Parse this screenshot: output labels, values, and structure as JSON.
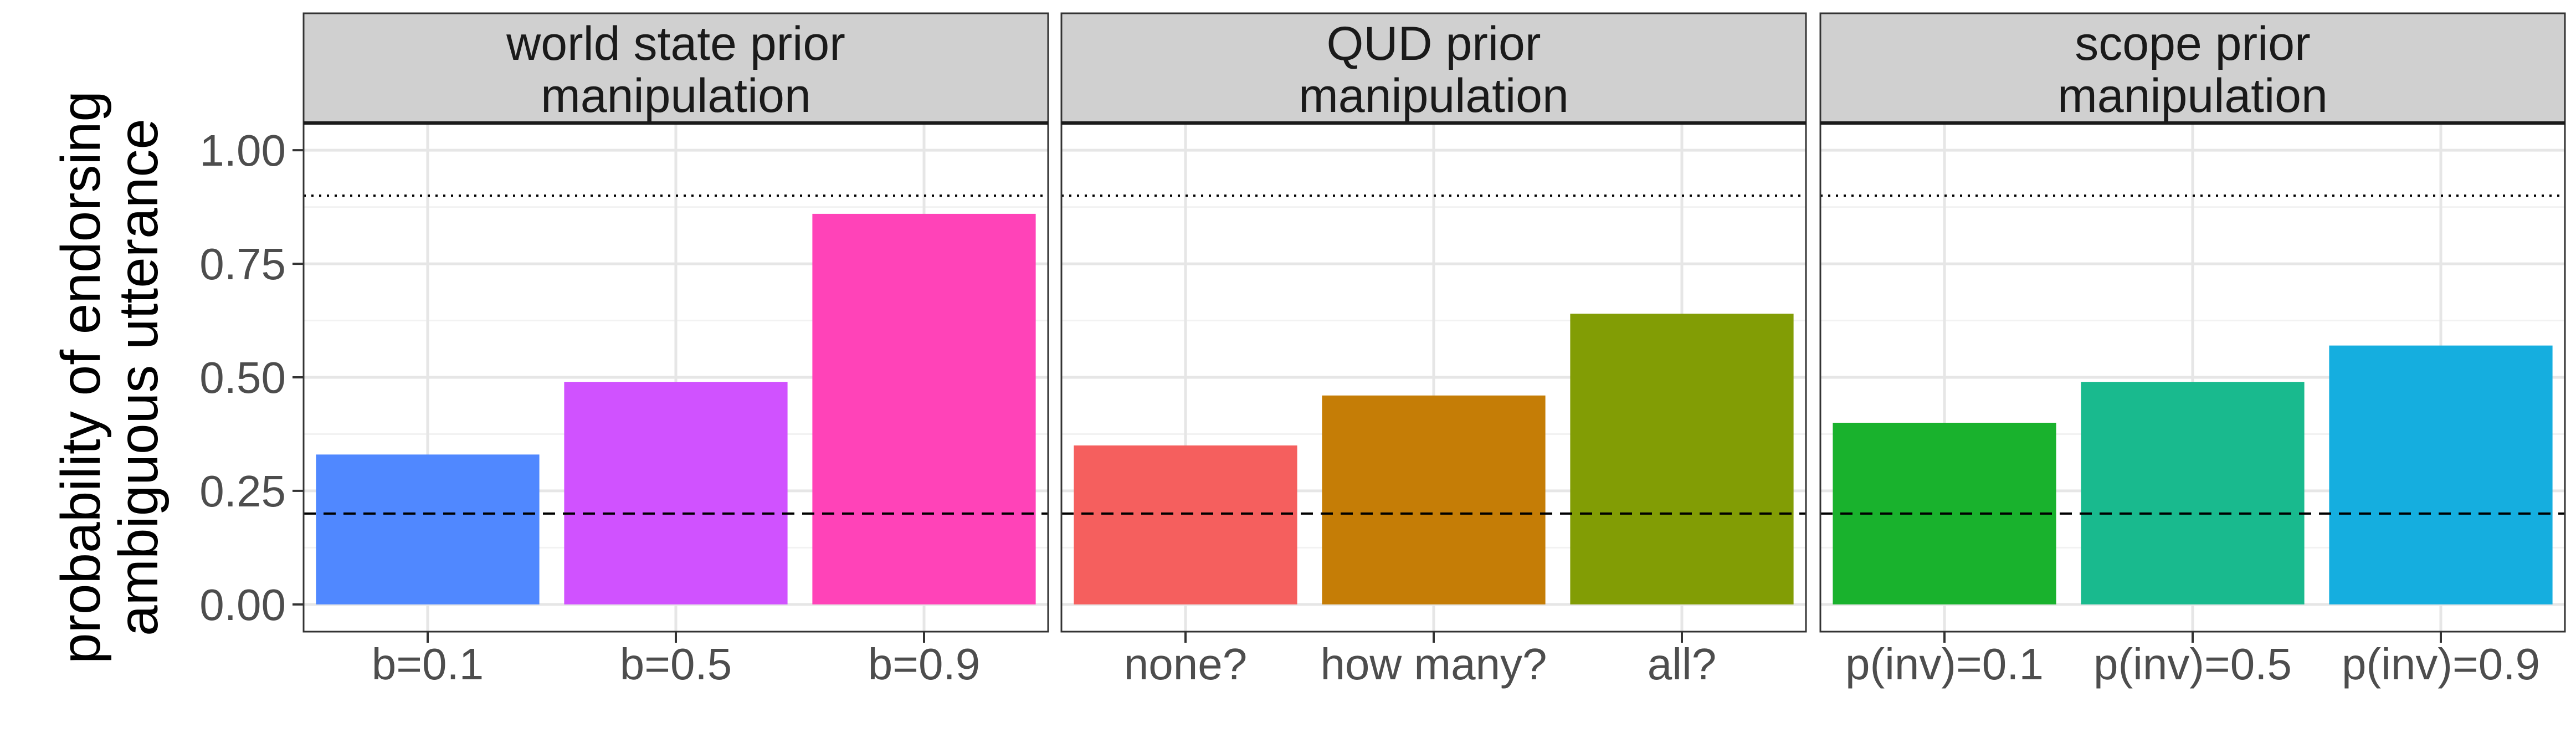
{
  "chart_data": {
    "type": "bar",
    "ylabel": [
      "probability of endorsing",
      "ambiguous utterance"
    ],
    "ylim": [
      -0.06,
      1.06
    ],
    "yticks": [
      0,
      0.25,
      0.5,
      0.75,
      1.0
    ],
    "ytick_labels": [
      "0.00",
      "0.25",
      "0.50",
      "0.75",
      "1.00"
    ],
    "reference_lines": [
      {
        "y": 0.9,
        "style": "dotted"
      },
      {
        "y": 0.2,
        "style": "dashed"
      }
    ],
    "grid": true,
    "panels": [
      {
        "strip": [
          "world state prior",
          "manipulation"
        ],
        "categories": [
          "b=0.1",
          "b=0.5",
          "b=0.9"
        ],
        "values": [
          0.33,
          0.49,
          0.86
        ],
        "colors": [
          "#5088FF",
          "#D052FF",
          "#FF43B8"
        ]
      },
      {
        "strip": [
          "QUD prior",
          "manipulation"
        ],
        "categories": [
          "none?",
          "how many?",
          "all?"
        ],
        "values": [
          0.35,
          0.46,
          0.64
        ],
        "colors": [
          "#F55F5E",
          "#C57D06",
          "#829D05"
        ]
      },
      {
        "strip": [
          "scope prior",
          "manipulation"
        ],
        "categories": [
          "p(inv)=0.1",
          "p(inv)=0.5",
          "p(inv)=0.9"
        ],
        "values": [
          0.4,
          0.49,
          0.57
        ],
        "colors": [
          "#19B22D",
          "#19BA8E",
          "#15AEDF"
        ]
      }
    ]
  }
}
